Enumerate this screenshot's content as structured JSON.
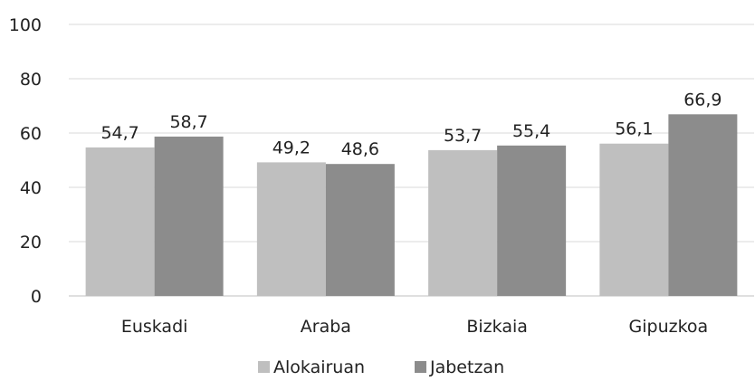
{
  "chart_data": {
    "type": "bar",
    "categories": [
      "Euskadi",
      "Araba",
      "Bizkaia",
      "Gipuzkoa"
    ],
    "series": [
      {
        "name": "Alokairuan",
        "values": [
          54.7,
          49.2,
          53.7,
          56.1
        ],
        "labels": [
          "54,7",
          "49,2",
          "53,7",
          "56,1"
        ],
        "color": "#bfbfbf"
      },
      {
        "name": "Jabetzan",
        "values": [
          58.7,
          48.6,
          55.4,
          66.9
        ],
        "labels": [
          "58,7",
          "48,6",
          "55,4",
          "66,9"
        ],
        "color": "#8c8c8c"
      }
    ],
    "yticks": [
      "0",
      "20",
      "40",
      "60",
      "80",
      "100"
    ],
    "ylim": [
      0,
      100
    ],
    "grid": true,
    "legend": "bottom"
  }
}
